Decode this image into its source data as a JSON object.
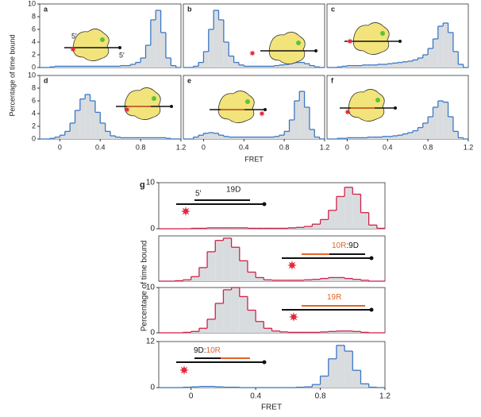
{
  "chart_data": [
    {
      "type": "histogram",
      "label": "a",
      "ylabel": "Percentage of time bound",
      "color": "#3a78c4",
      "fill": "#d9dcdf",
      "bins": [
        -0.2,
        -0.15,
        -0.1,
        -0.05,
        0,
        0.05,
        0.1,
        0.15,
        0.2,
        0.25,
        0.3,
        0.35,
        0.4,
        0.45,
        0.5,
        0.55,
        0.6,
        0.65,
        0.7,
        0.75,
        0.8,
        0.85,
        0.9,
        0.95,
        1,
        1.05,
        1.1,
        1.15,
        1.2
      ],
      "values": [
        0,
        0,
        0.1,
        0.2,
        0.2,
        0.2,
        0.2,
        0.2,
        0.2,
        0.2,
        0.2,
        0.2,
        0.2,
        0.2,
        0.2,
        0.2,
        0.3,
        0.3,
        0.5,
        0.8,
        1.5,
        3.5,
        7.5,
        9,
        5.5,
        1.5,
        0.3,
        0
      ],
      "xlim": [
        -0.2,
        1.2
      ],
      "ylim": [
        0,
        10
      ],
      "yticks": [
        0,
        2,
        4,
        6,
        8,
        10
      ],
      "annotations": [
        {
          "text": "5′",
          "color": "#111"
        },
        {
          "text": "5′",
          "color": "#111"
        }
      ]
    },
    {
      "type": "histogram",
      "label": "b",
      "color": "#3a78c4",
      "fill": "#d9dcdf",
      "bins": [
        -0.2,
        -0.15,
        -0.1,
        -0.05,
        0,
        0.05,
        0.1,
        0.15,
        0.2,
        0.25,
        0.3,
        0.35,
        0.4,
        0.45,
        0.5,
        0.55,
        0.6,
        0.65,
        0.7,
        0.75,
        0.8,
        0.85,
        0.9,
        0.95,
        1,
        1.05,
        1.1,
        1.15,
        1.2
      ],
      "values": [
        0,
        0,
        0.2,
        0.8,
        2.5,
        6,
        9,
        7.5,
        4,
        1.8,
        0.8,
        0.4,
        0.2,
        0.2,
        0.2,
        0.2,
        0.2,
        0.2,
        0.3,
        0.4,
        0.5,
        0.7,
        0.8,
        0.8,
        0.6,
        0.3,
        0.1,
        0
      ],
      "xlim": [
        -0.2,
        1.2
      ],
      "ylim": [
        0,
        10
      ]
    },
    {
      "type": "histogram",
      "label": "c",
      "color": "#3a78c4",
      "fill": "#d9dcdf",
      "bins": [
        -0.2,
        -0.15,
        -0.1,
        -0.05,
        0,
        0.05,
        0.1,
        0.15,
        0.2,
        0.25,
        0.3,
        0.35,
        0.4,
        0.45,
        0.5,
        0.55,
        0.6,
        0.65,
        0.7,
        0.75,
        0.8,
        0.85,
        0.9,
        0.95,
        1,
        1.05,
        1.1,
        1.15,
        1.2
      ],
      "values": [
        0,
        0,
        0.1,
        0.2,
        0.3,
        0.3,
        0.3,
        0.4,
        0.4,
        0.4,
        0.5,
        0.5,
        0.6,
        0.7,
        0.8,
        0.9,
        1,
        1.2,
        1.5,
        2,
        3,
        4.5,
        6.5,
        7,
        5.5,
        2.5,
        0.5,
        0
      ],
      "xlim": [
        -0.2,
        1.2
      ],
      "ylim": [
        0,
        10
      ]
    },
    {
      "type": "histogram",
      "label": "d",
      "color": "#3a78c4",
      "fill": "#d9dcdf",
      "bins": [
        -0.2,
        -0.15,
        -0.1,
        -0.05,
        0,
        0.05,
        0.1,
        0.15,
        0.2,
        0.25,
        0.3,
        0.35,
        0.4,
        0.45,
        0.5,
        0.55,
        0.6,
        0.65,
        0.7,
        0.75,
        0.8,
        0.85,
        0.9,
        0.95,
        1,
        1.05,
        1.1,
        1.15,
        1.2
      ],
      "values": [
        0,
        0,
        0.1,
        0.3,
        0.6,
        1.2,
        2.5,
        4.5,
        6.3,
        7,
        6,
        4.2,
        2.5,
        1.2,
        0.5,
        0.3,
        0.2,
        0.2,
        0.2,
        0.2,
        0.2,
        0.2,
        0.2,
        0.2,
        0.2,
        0.1,
        0,
        0
      ],
      "xlim": [
        -0.2,
        1.2
      ],
      "ylim": [
        0,
        10
      ],
      "yticks": [
        0,
        2,
        4,
        6,
        8,
        10
      ],
      "xticks": [
        0,
        0.4,
        0.8,
        1.2
      ]
    },
    {
      "type": "histogram",
      "label": "e",
      "xlabel": "FRET",
      "color": "#3a78c4",
      "fill": "#d9dcdf",
      "bins": [
        -0.2,
        -0.15,
        -0.1,
        -0.05,
        0,
        0.05,
        0.1,
        0.15,
        0.2,
        0.25,
        0.3,
        0.35,
        0.4,
        0.45,
        0.5,
        0.55,
        0.6,
        0.65,
        0.7,
        0.75,
        0.8,
        0.85,
        0.9,
        0.95,
        1,
        1.05,
        1.1,
        1.15,
        1.2
      ],
      "values": [
        0,
        0,
        0.3,
        0.6,
        0.9,
        1,
        0.9,
        0.6,
        0.4,
        0.3,
        0.3,
        0.3,
        0.3,
        0.3,
        0.3,
        0.3,
        0.3,
        0.3,
        0.4,
        0.6,
        1.2,
        3,
        6,
        7.5,
        5,
        1.5,
        0.3,
        0
      ],
      "xlim": [
        -0.2,
        1.2
      ],
      "ylim": [
        0,
        10
      ],
      "xticks": [
        0,
        0.4,
        0.8,
        1.2
      ]
    },
    {
      "type": "histogram",
      "label": "f",
      "color": "#3a78c4",
      "fill": "#d9dcdf",
      "bins": [
        -0.2,
        -0.15,
        -0.1,
        -0.05,
        0,
        0.05,
        0.1,
        0.15,
        0.2,
        0.25,
        0.3,
        0.35,
        0.4,
        0.45,
        0.5,
        0.55,
        0.6,
        0.65,
        0.7,
        0.75,
        0.8,
        0.85,
        0.9,
        0.95,
        1,
        1.05,
        1.1,
        1.15,
        1.2
      ],
      "values": [
        0,
        0,
        0.1,
        0.1,
        0.2,
        0.2,
        0.2,
        0.2,
        0.3,
        0.3,
        0.3,
        0.4,
        0.4,
        0.5,
        0.6,
        0.8,
        1,
        1.3,
        1.8,
        2.5,
        3.5,
        5,
        6,
        5.8,
        3.5,
        1.2,
        0.2,
        0
      ],
      "xlim": [
        -0.2,
        1.2
      ],
      "ylim": [
        0,
        10
      ],
      "xticks": [
        0,
        0.4,
        0.8,
        1.2
      ]
    },
    {
      "type": "histogram",
      "label": "g",
      "ylabel": "Percentage of time bound",
      "color": "#d0224a",
      "fill": "#d9dcdf",
      "bins": [
        -0.2,
        -0.15,
        -0.1,
        -0.05,
        0,
        0.05,
        0.1,
        0.15,
        0.2,
        0.25,
        0.3,
        0.35,
        0.4,
        0.45,
        0.5,
        0.55,
        0.6,
        0.65,
        0.7,
        0.75,
        0.8,
        0.85,
        0.9,
        0.95,
        1,
        1.05,
        1.1,
        1.15,
        1.2
      ],
      "values": [
        0,
        0,
        0,
        0,
        0.1,
        0.1,
        0.2,
        0.2,
        0.2,
        0.2,
        0.2,
        0.1,
        0.1,
        0.1,
        0.1,
        0.1,
        0.2,
        0.3,
        0.5,
        1,
        2,
        4,
        7,
        9,
        7.5,
        3.5,
        0.8,
        0.1
      ],
      "xlim": [
        -0.2,
        1.2
      ],
      "ylim": [
        0,
        10
      ],
      "yticks": [
        0,
        10
      ],
      "annotations": [
        {
          "text": "5′",
          "color": "#111"
        },
        {
          "text": "19D",
          "color": "#111"
        }
      ]
    },
    {
      "type": "histogram",
      "color": "#d0224a",
      "fill": "#d9dcdf",
      "bins": [
        -0.2,
        -0.15,
        -0.1,
        -0.05,
        0,
        0.05,
        0.1,
        0.15,
        0.2,
        0.25,
        0.3,
        0.35,
        0.4,
        0.45,
        0.5,
        0.55,
        0.6,
        0.65,
        0.7,
        0.75,
        0.8,
        0.85,
        0.9,
        0.95,
        1,
        1.05,
        1.1,
        1.15,
        1.2
      ],
      "values": [
        0,
        0,
        0.1,
        0.3,
        1,
        3,
        6.5,
        9,
        9.5,
        7.5,
        4.5,
        2,
        0.8,
        0.3,
        0.2,
        0.2,
        0.2,
        0.2,
        0.3,
        0.4,
        0.6,
        0.8,
        0.8,
        0.6,
        0.4,
        0.2,
        0,
        0
      ],
      "xlim": [
        -0.2,
        1.2
      ],
      "ylim": [
        0,
        10
      ],
      "annotations": [
        {
          "text": "10R",
          "color": "#e0642a"
        },
        {
          "text": ":9D",
          "color": "#111"
        }
      ]
    },
    {
      "type": "histogram",
      "color": "#d0224a",
      "fill": "#d9dcdf",
      "bins": [
        -0.2,
        -0.15,
        -0.1,
        -0.05,
        0,
        0.05,
        0.1,
        0.15,
        0.2,
        0.25,
        0.3,
        0.35,
        0.4,
        0.45,
        0.5,
        0.55,
        0.6,
        0.65,
        0.7,
        0.75,
        0.8,
        0.85,
        0.9,
        0.95,
        1,
        1.05,
        1.1,
        1.15,
        1.2
      ],
      "values": [
        0,
        0,
        0,
        0.1,
        0.3,
        1,
        3,
        6.5,
        9.5,
        10,
        8,
        5,
        2.5,
        1,
        0.4,
        0.2,
        0.1,
        0.1,
        0.1,
        0.1,
        0.2,
        0.3,
        0.4,
        0.4,
        0.3,
        0.1,
        0,
        0
      ],
      "xlim": [
        -0.2,
        1.2
      ],
      "ylim": [
        0,
        10
      ],
      "yticks": [
        0,
        10
      ],
      "annotations": [
        {
          "text": "19R",
          "color": "#e0642a"
        }
      ]
    },
    {
      "type": "histogram",
      "xlabel": "FRET",
      "color": "#3a78c4",
      "fill": "#d9dcdf",
      "bins": [
        -0.2,
        -0.15,
        -0.1,
        -0.05,
        0,
        0.05,
        0.1,
        0.15,
        0.2,
        0.25,
        0.3,
        0.35,
        0.4,
        0.45,
        0.5,
        0.55,
        0.6,
        0.65,
        0.7,
        0.75,
        0.8,
        0.85,
        0.9,
        0.95,
        1,
        1.05,
        1.1,
        1.15,
        1.2
      ],
      "values": [
        0,
        0,
        0,
        0.1,
        0.2,
        0.3,
        0.3,
        0.2,
        0.1,
        0.1,
        0,
        0,
        0,
        0,
        0,
        0,
        0,
        0.1,
        0.2,
        0.8,
        3,
        7.5,
        11,
        9.5,
        4.5,
        1,
        0.1,
        0
      ],
      "xlim": [
        -0.2,
        1.2
      ],
      "ylim": [
        0,
        12
      ],
      "yticks": [
        0,
        12
      ],
      "xticks": [
        0,
        0.4,
        0.8,
        1.2
      ],
      "annotations": [
        {
          "text": "9D:",
          "color": "#111"
        },
        {
          "text": "10R",
          "color": "#e0642a"
        }
      ]
    }
  ]
}
